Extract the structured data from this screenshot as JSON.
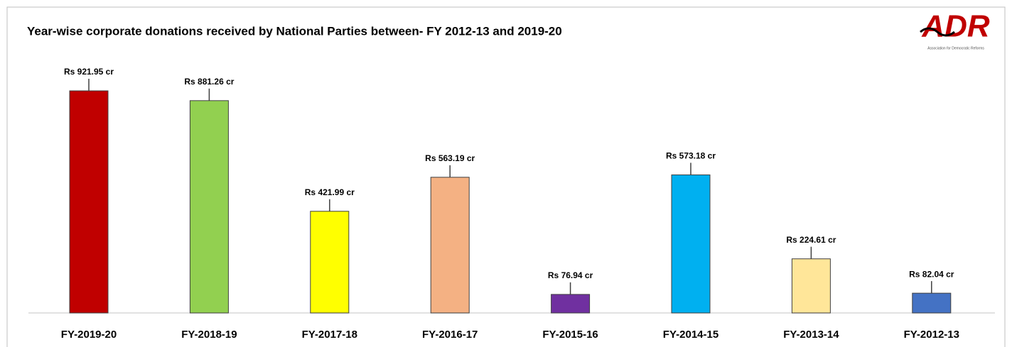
{
  "chart_data": {
    "type": "bar",
    "title": "Year-wise corporate donations received by National Parties between- FY 2012-13 and 2019-20",
    "logo": "ADR",
    "logo_caption": "Association for Democratic Reforms",
    "categories": [
      "FY-2019-20",
      "FY-2018-19",
      "FY-2017-18",
      "FY-2016-17",
      "FY-2015-16",
      "FY-2014-15",
      "FY-2013-14",
      "FY-2012-13"
    ],
    "values": [
      921.95,
      881.26,
      421.99,
      563.19,
      76.94,
      573.18,
      224.61,
      82.04
    ],
    "value_labels": [
      "Rs 921.95 cr",
      "Rs 881.26 cr",
      "Rs 421.99 cr",
      "Rs 563.19 cr",
      "Rs 76.94 cr",
      "Rs 573.18 cr",
      "Rs 224.61 cr",
      "Rs 82.04 cr"
    ],
    "colors": [
      "#c00000",
      "#92d050",
      "#ffff00",
      "#f4b183",
      "#7030a0",
      "#00b0f0",
      "#ffe699",
      "#4472c4"
    ]
  }
}
